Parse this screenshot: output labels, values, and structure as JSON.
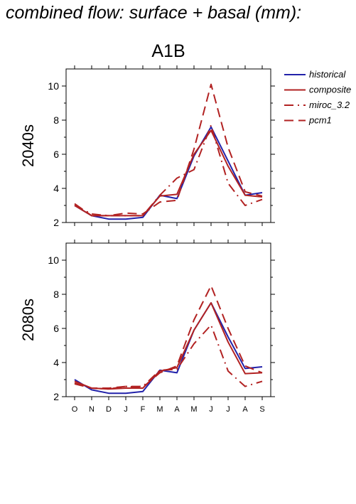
{
  "page_title": "combined flow: surface + basal (mm):",
  "scenario_title": "A1B",
  "colors": {
    "historical": "#2222aa",
    "models": "#b22222",
    "axis": "#000000"
  },
  "legend": [
    {
      "name": "historical",
      "color": "#2222aa",
      "dash": "solid"
    },
    {
      "name": "composite",
      "color": "#b22222",
      "dash": "solid"
    },
    {
      "name": "miroc_3.2",
      "color": "#b22222",
      "dash": "dashdot"
    },
    {
      "name": "pcm1",
      "color": "#b22222",
      "dash": "dash"
    }
  ],
  "chart_data": [
    {
      "type": "line",
      "title": "A1B",
      "ylabel": "2040s",
      "xlabel": "",
      "categories": [
        "O",
        "N",
        "D",
        "J",
        "F",
        "M",
        "A",
        "M",
        "J",
        "J",
        "A",
        "S"
      ],
      "ylim": [
        2,
        11
      ],
      "yticks": [
        2,
        4,
        6,
        8,
        10
      ],
      "series": [
        {
          "name": "historical",
          "values": [
            3.0,
            2.4,
            2.2,
            2.2,
            2.3,
            3.6,
            3.4,
            5.9,
            7.6,
            5.6,
            3.6,
            3.75
          ]
        },
        {
          "name": "composite",
          "values": [
            3.0,
            2.4,
            2.4,
            2.4,
            2.4,
            3.55,
            3.65,
            6.0,
            7.4,
            5.3,
            3.6,
            3.5
          ]
        },
        {
          "name": "miroc_3.2",
          "values": [
            3.0,
            2.5,
            2.4,
            2.4,
            2.4,
            3.6,
            4.6,
            5.1,
            7.7,
            4.3,
            3.0,
            3.35
          ]
        },
        {
          "name": "pcm1",
          "values": [
            3.1,
            2.4,
            2.4,
            2.55,
            2.5,
            3.2,
            3.3,
            6.3,
            10.1,
            6.4,
            3.8,
            3.55
          ]
        }
      ]
    },
    {
      "type": "line",
      "title": "",
      "ylabel": "2080s",
      "xlabel": "",
      "categories": [
        "O",
        "N",
        "D",
        "J",
        "F",
        "M",
        "A",
        "M",
        "J",
        "J",
        "A",
        "S"
      ],
      "ylim": [
        2,
        11
      ],
      "yticks": [
        2,
        4,
        6,
        8,
        10
      ],
      "series": [
        {
          "name": "historical",
          "values": [
            3.0,
            2.4,
            2.2,
            2.2,
            2.3,
            3.55,
            3.4,
            5.9,
            7.5,
            5.5,
            3.65,
            3.75
          ]
        },
        {
          "name": "composite",
          "values": [
            2.9,
            2.5,
            2.45,
            2.5,
            2.5,
            3.5,
            3.7,
            5.9,
            7.5,
            5.2,
            3.35,
            3.4
          ]
        },
        {
          "name": "miroc_3.2",
          "values": [
            2.75,
            2.5,
            2.45,
            2.6,
            2.6,
            3.55,
            3.6,
            5.1,
            6.2,
            3.5,
            2.6,
            2.9
          ]
        },
        {
          "name": "pcm1",
          "values": [
            2.8,
            2.5,
            2.5,
            2.6,
            2.55,
            3.4,
            3.8,
            6.5,
            8.5,
            6.0,
            3.8,
            3.4
          ]
        }
      ]
    }
  ]
}
